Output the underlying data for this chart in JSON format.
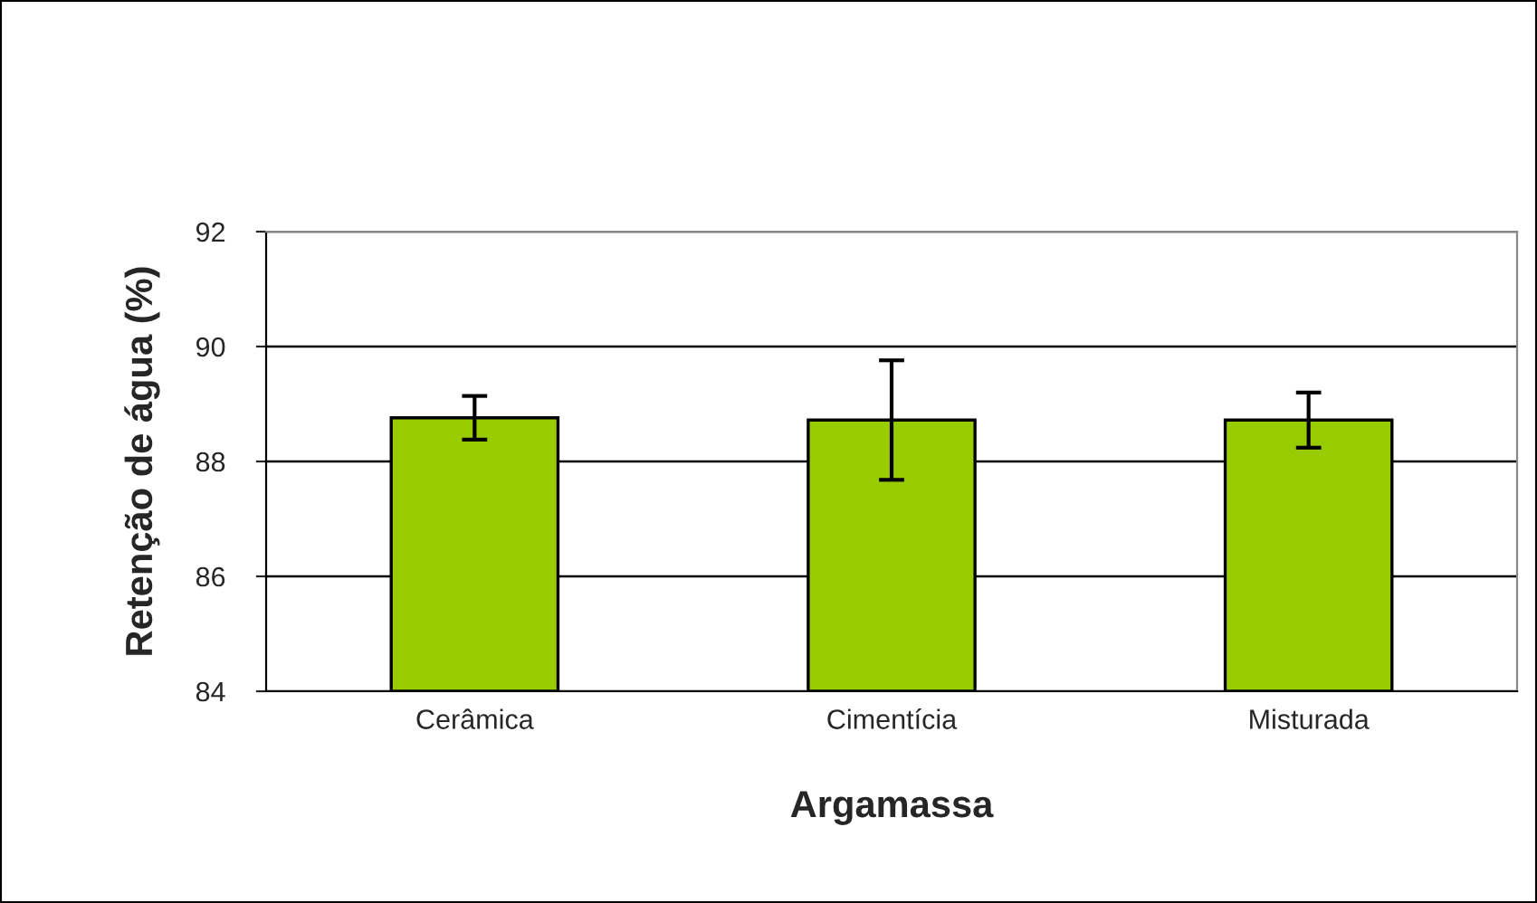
{
  "chart_data": {
    "type": "bar",
    "xlabel": "Argamassa",
    "ylabel": "Retenção de água (%)",
    "categories": [
      "Cerâmica",
      "Cimentícia",
      "Misturada"
    ],
    "values": [
      88.76,
      88.72,
      88.72
    ],
    "color": "#99cc00",
    "errors": [
      0.38,
      1.04,
      0.48
    ],
    "ylim": [
      84,
      92
    ],
    "yticks": [
      84,
      86,
      88,
      90,
      92
    ],
    "grid": "y"
  }
}
